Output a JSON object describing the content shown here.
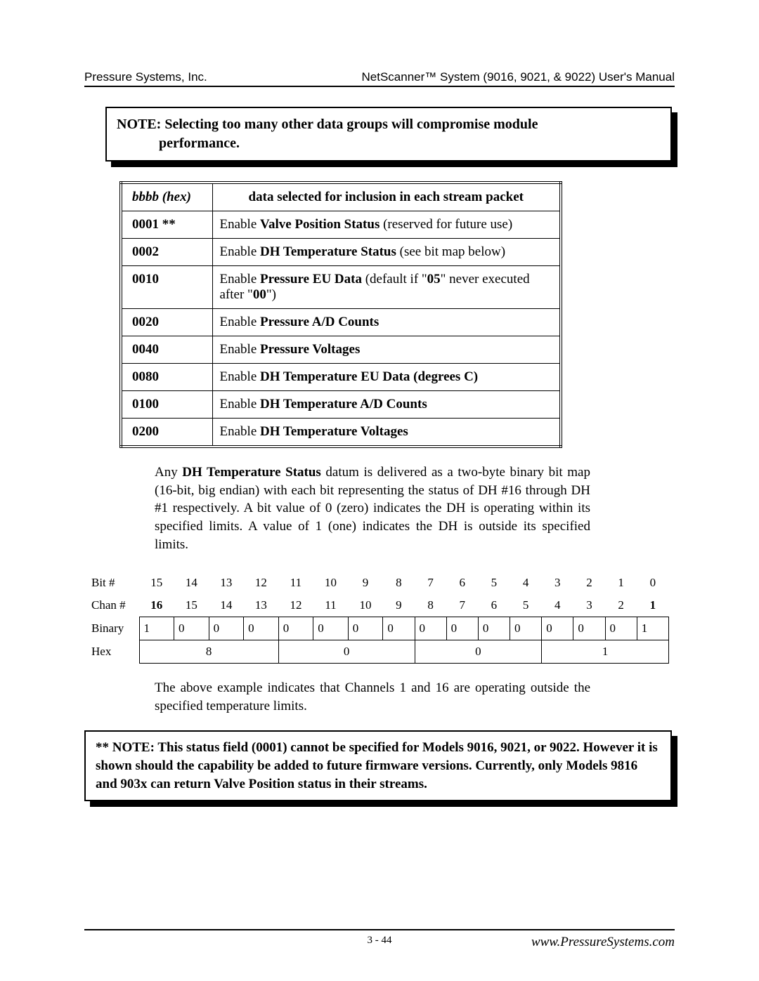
{
  "header": {
    "left": "Pressure Systems, Inc.",
    "right": "NetScanner™ System (9016, 9021, & 9022) User's Manual"
  },
  "note1": {
    "lead": "NOTE: ",
    "text_line1": "Selecting too many other data groups will compromise module",
    "text_line2": "performance."
  },
  "table": {
    "head_col0": "bbbb (hex)",
    "head_col1": "data selected for inclusion in each stream packet",
    "rows": [
      {
        "code": "0001 **",
        "pre": "Enable ",
        "bold": "Valve Position Status",
        "post": " (reserved for future use)"
      },
      {
        "code": "0002",
        "pre": "Enable ",
        "bold": "DH Temperature Status",
        "post": " (see bit map below)"
      },
      {
        "code": "0010",
        "pre": "Enable ",
        "bold": "Pressure EU Data",
        "post": " (default if \"",
        "bold2": "05",
        "post2": "\" never executed after \"",
        "bold3": "00",
        "post3": "\")"
      },
      {
        "code": "0020",
        "pre": "Enable ",
        "bold": "Pressure A/D Counts",
        "post": ""
      },
      {
        "code": "0040",
        "pre": "Enable ",
        "bold": "Pressure Voltages",
        "post": ""
      },
      {
        "code": "0080",
        "pre": "Enable ",
        "bold": "DH Temperature EU Data (degrees C)",
        "post": ""
      },
      {
        "code": "0100",
        "pre": "Enable ",
        "bold": "DH Temperature A/D Counts",
        "post": ""
      },
      {
        "code": "0200",
        "pre": "Enable ",
        "bold": "DH Temperature Voltages",
        "post": ""
      }
    ]
  },
  "para1": {
    "pre": "Any ",
    "bold": "DH Temperature Status",
    "post": " datum is delivered as a two-byte binary bit map (16-bit, big endian) with each bit representing the status of DH #16 through DH #1 respectively.  A bit value of 0 (zero) indicates the DH is operating within its specified limits.  A value of 1 (one) indicates the DH is outside its specified limits."
  },
  "bitmap": {
    "bit_label": "Bit #",
    "chan_label": "Chan #",
    "bin_label": "Binary",
    "hex_label": "Hex",
    "bits": [
      "15",
      "14",
      "13",
      "12",
      "11",
      "10",
      "9",
      "8",
      "7",
      "6",
      "5",
      "4",
      "3",
      "2",
      "1",
      "0"
    ],
    "chans": [
      "16",
      "15",
      "14",
      "13",
      "12",
      "11",
      "10",
      "9",
      "8",
      "7",
      "6",
      "5",
      "4",
      "3",
      "2",
      "1"
    ],
    "chan_bold": [
      true,
      false,
      false,
      false,
      false,
      false,
      false,
      false,
      false,
      false,
      false,
      false,
      false,
      false,
      false,
      true
    ],
    "binary": [
      "1",
      "0",
      "0",
      "0",
      "0",
      "0",
      "0",
      "0",
      "0",
      "0",
      "0",
      "0",
      "0",
      "0",
      "0",
      "1"
    ],
    "hex": [
      "8",
      "0",
      "0",
      "1"
    ]
  },
  "para2": "The above example indicates that Channels 1 and 16 are operating outside the specified temperature limits.",
  "note2": "**  NOTE:  This status field (0001) cannot be specified for Models 9016, 9021, or 9022. However it is shown should the capability be added to future firmware versions. Currently, only Models 9816 and 903x can return Valve Position status in their streams.",
  "footer": {
    "center": "3 - 44",
    "right": "www.PressureSystems.com"
  }
}
